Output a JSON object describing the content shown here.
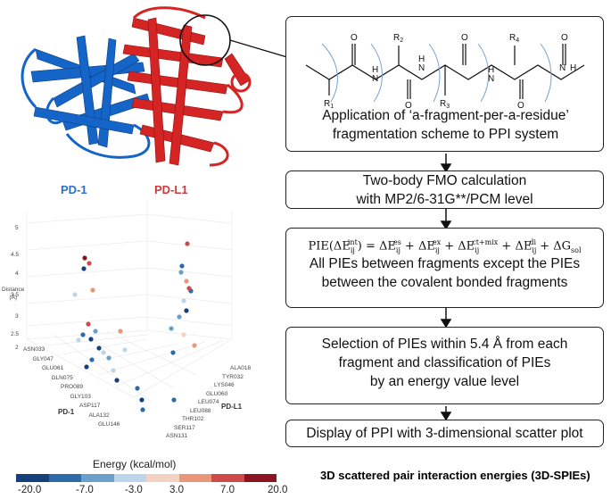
{
  "protein_panel": {
    "description_icon": "protein-ribbon",
    "colors": {
      "pd1": "#1565c8",
      "pdl1": "#d42424"
    }
  },
  "plot": {
    "chain_label_left": "PD-1",
    "chain_label_right": "PD-L1",
    "axis_z_label_line1": "Distance",
    "axis_z_label_line2": "(Å)",
    "z_ticks": [
      "5",
      "4.5",
      "4",
      "3.5",
      "3",
      "2.5",
      "2"
    ],
    "axis_left_title": "PD-1",
    "axis_right_title": "PD-L1",
    "left_residues": [
      "ASN033",
      "GLY047",
      "GLU061",
      "GLN075",
      "PRO089",
      "GLY103",
      "ASP117",
      "ALA132",
      "GLU146"
    ],
    "right_residues": [
      "ALA018",
      "TYR032",
      "LYS046",
      "GLU060",
      "LEU074",
      "LEU088",
      "THR102",
      "SER117",
      "ASN131"
    ]
  },
  "colorbar": {
    "title": "Energy (kcal/mol)",
    "ticks": [
      "-20.0",
      "-7.0",
      "-3.0",
      "3.0",
      "7.0",
      "20.0"
    ],
    "colors": [
      "#15407a",
      "#2c6ba8",
      "#6aa0cc",
      "#bcd5e8",
      "#f3d2c2",
      "#e9967a",
      "#cf4a4a",
      "#8c1420"
    ]
  },
  "chem_structure": {
    "labels": [
      "R2",
      "R4",
      "R1",
      "R3",
      "O",
      "O",
      "O",
      "O",
      "O",
      "N",
      "N",
      "N",
      "N",
      "H",
      "H",
      "H",
      "H"
    ]
  },
  "flow": {
    "step1": [
      "Application of ‘a-fragment-per-a-residue’",
      "fragmentation scheme to PPI system"
    ],
    "step2": [
      "Two-body FMO calculation",
      "with MP2/6-31G**/PCM level"
    ],
    "step3_formula": "PIE(ΔE_ij^int) = ΔE_ij^es + ΔE_ij^ex + ΔE_ij^ct+mix + ΔE_ij^di + ΔG_sol",
    "step3": [
      "All PIEs between fragments except the PIEs",
      "between the covalent bonded fragments"
    ],
    "step4": [
      "Selection of PIEs within 5.4 Å  from each",
      "fragment and classification of PIEs",
      "by an energy value level"
    ],
    "step5": [
      "Display of PPI with 3-dimensional scatter plot"
    ]
  },
  "caption": "3D scattered pair interaction energies (3D-SPIEs)"
}
